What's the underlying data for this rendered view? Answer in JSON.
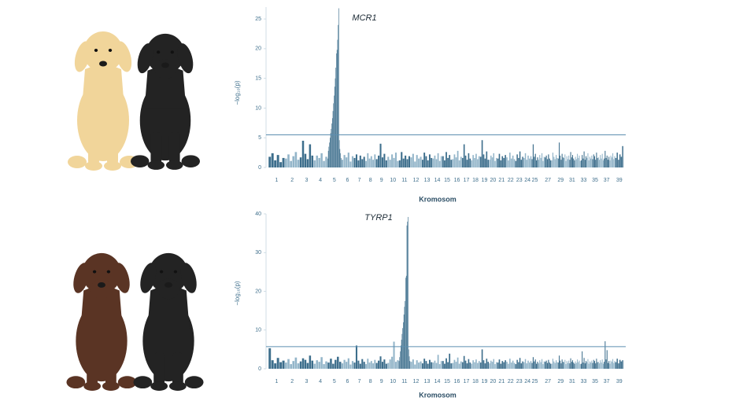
{
  "chart_data": [
    {
      "type": "manhattan",
      "annotation": "MCR1",
      "xlabel": "Kromosom",
      "ylabel": "−log₁₀(p)",
      "categories": [
        "1",
        "2",
        "3",
        "4",
        "5",
        "6",
        "7",
        "8",
        "9",
        "10",
        "11",
        "12",
        "13",
        "14",
        "15",
        "16",
        "17",
        "18",
        "19",
        "20",
        "21",
        "22",
        "23",
        "24",
        "25",
        null,
        "27",
        null,
        "29",
        null,
        "31",
        null,
        "33",
        null,
        "35",
        null,
        "37",
        null,
        "39"
      ],
      "colors": [
        "#3d6e8c",
        "#93b5c9"
      ],
      "threshold": 5.5,
      "ylim": [
        0,
        27
      ],
      "yticks": [
        0,
        5,
        10,
        15,
        20,
        25
      ],
      "values": [
        [
          1.8,
          2.4,
          1.2,
          2.1,
          0.9,
          1.6
        ],
        [
          1.5,
          2.2,
          1.1,
          1.9,
          2.6,
          1.3
        ],
        [
          1.7,
          4.5,
          2.3,
          1.4,
          3.9,
          2.0
        ],
        [
          1.2,
          2.0,
          1.6,
          2.4,
          1.1,
          1.8
        ],
        [
          1.5,
          2.8,
          3.5,
          4.2,
          5.0,
          5.8,
          6.5,
          7.4,
          8.3,
          9.5,
          10.8,
          12.1,
          13.6,
          15.0,
          16.8,
          19.2,
          19.8,
          21.5,
          24.0,
          26.8,
          4.6,
          3.1,
          2.4,
          1.6
        ],
        [
          1.3,
          2.1,
          1.7,
          2.5,
          1.0,
          1.9
        ],
        [
          1.6,
          2.2,
          1.2,
          2.0,
          1.4,
          1.8
        ],
        [
          1.1,
          2.4,
          1.5,
          1.9,
          1.3,
          2.2
        ],
        [
          1.4,
          2.0,
          4.0,
          1.7,
          2.3,
          1.2
        ],
        [
          1.8,
          1.3,
          2.2,
          1.6,
          2.5,
          1.1
        ],
        [
          1.2,
          2.6,
          1.5,
          2.0,
          1.4,
          1.9
        ],
        [
          1.7,
          2.3,
          1.0,
          2.1,
          1.5,
          1.8
        ],
        [
          1.3,
          2.5,
          1.9,
          1.2,
          2.2,
          1.6
        ],
        [
          1.5,
          2.0,
          1.4,
          2.4,
          1.1,
          1.9
        ],
        [
          1.9,
          1.2,
          2.6,
          1.6,
          2.1,
          1.3
        ],
        [
          1.4,
          2.2,
          1.7,
          2.8,
          1.2,
          1.8
        ],
        [
          1.6,
          3.9,
          2.0,
          1.3,
          2.4,
          1.5
        ],
        [
          1.2,
          2.1,
          1.6,
          2.3,
          1.4,
          1.9
        ],
        [
          1.8,
          4.6,
          2.2,
          1.5,
          2.7,
          1.3
        ],
        [
          1.3,
          2.0,
          1.7,
          2.4,
          1.1,
          1.6
        ],
        [
          1.5,
          2.3,
          1.2,
          1.9,
          1.6,
          2.1
        ],
        [
          1.7,
          1.2,
          2.5,
          1.5,
          2.0,
          1.4
        ],
        [
          1.1,
          2.2,
          1.6,
          2.7,
          1.3,
          1.8
        ],
        [
          1.6,
          2.4,
          1.3,
          2.0,
          1.5,
          1.9
        ],
        [
          1.4,
          3.9,
          1.8,
          2.3,
          1.2,
          1.7
        ],
        [
          1.3,
          2.1,
          1.6,
          2.4,
          1.1,
          1.8
        ],
        [
          1.7,
          2.0,
          1.4,
          2.2,
          1.5,
          1.2
        ],
        [
          1.2,
          2.5,
          1.8,
          1.4,
          2.1,
          1.6
        ],
        [
          1.5,
          4.2,
          2.0,
          1.3,
          2.3,
          1.7
        ],
        [
          1.6,
          2.2,
          1.1,
          1.9,
          1.4,
          2.0
        ],
        [
          1.3,
          2.6,
          1.7,
          2.1,
          1.5,
          1.2
        ],
        [
          1.8,
          1.4,
          2.3,
          1.6,
          2.0,
          1.1
        ],
        [
          1.2,
          2.1,
          1.5,
          2.7,
          1.3,
          1.9
        ],
        [
          1.6,
          2.4,
          1.2,
          1.8,
          1.5,
          2.0
        ],
        [
          1.4,
          2.2,
          1.9,
          1.3,
          2.5,
          1.6
        ],
        [
          1.7,
          1.3,
          2.1,
          1.5,
          2.3,
          1.2
        ],
        [
          1.5,
          2.8,
          1.6,
          2.0,
          1.3,
          1.8
        ],
        [
          1.2,
          2.0,
          1.7,
          2.4,
          1.4,
          1.9
        ],
        [
          1.6,
          2.5,
          1.3,
          2.2,
          1.8,
          3.6
        ]
      ]
    },
    {
      "type": "manhattan",
      "annotation": "TYRP1",
      "xlabel": "Kromosom",
      "ylabel": "−log₁₀(p)",
      "categories": [
        "1",
        "2",
        "3",
        "4",
        "5",
        "6",
        "7",
        "8",
        "9",
        "10",
        "11",
        "12",
        "13",
        "14",
        "15",
        "16",
        "17",
        "18",
        "19",
        "20",
        "21",
        "22",
        "23",
        "24",
        "25",
        null,
        "27",
        null,
        "29",
        null,
        "31",
        null,
        "33",
        null,
        "35",
        null,
        "37",
        null,
        "39"
      ],
      "colors": [
        "#3d6e8c",
        "#93b5c9"
      ],
      "threshold": 5.7,
      "ylim": [
        0,
        40
      ],
      "yticks": [
        0,
        10,
        20,
        30,
        40
      ],
      "values": [
        [
          5.3,
          2.2,
          1.4,
          2.8,
          1.7,
          2.1
        ],
        [
          1.6,
          2.5,
          1.2,
          2.0,
          2.9,
          1.4
        ],
        [
          1.9,
          2.7,
          2.3,
          1.5,
          3.4,
          2.1
        ],
        [
          1.3,
          2.2,
          1.8,
          3.0,
          1.2,
          1.9
        ],
        [
          1.6,
          2.6,
          1.3,
          2.3,
          3.1,
          1.8
        ],
        [
          1.4,
          2.3,
          1.8,
          2.7,
          1.1,
          2.0
        ],
        [
          1.6,
          6.0,
          2.1,
          1.3,
          2.5,
          1.8
        ],
        [
          1.2,
          2.6,
          1.6,
          2.0,
          1.4,
          2.3
        ],
        [
          1.5,
          2.1,
          3.2,
          1.8,
          2.4,
          1.3
        ],
        [
          1.5,
          2.4,
          3.1,
          7.0,
          1.8,
          2.2
        ],
        [
          2.0,
          3.0,
          4.5,
          6.0,
          7.5,
          9.0,
          10.5,
          12.0,
          14.0,
          16.0,
          17.5,
          23.5,
          24.0,
          37.0,
          38.0,
          39.2,
          5.0,
          3.2,
          2.0
        ],
        [
          1.8,
          2.4,
          1.1,
          2.2,
          1.6,
          1.9
        ],
        [
          1.4,
          2.6,
          2.0,
          1.3,
          2.3,
          1.7
        ],
        [
          1.6,
          2.1,
          1.5,
          3.6,
          1.2,
          2.0
        ],
        [
          2.0,
          1.3,
          2.7,
          1.7,
          3.9,
          1.4
        ],
        [
          1.5,
          2.3,
          1.8,
          2.9,
          1.3,
          1.9
        ],
        [
          1.7,
          3.3,
          2.1,
          1.4,
          2.5,
          1.6
        ],
        [
          1.3,
          2.2,
          1.7,
          2.4,
          1.5,
          2.0
        ],
        [
          1.6,
          5.0,
          2.2,
          1.4,
          2.6,
          1.8
        ],
        [
          1.4,
          2.1,
          1.8,
          2.5,
          1.2,
          1.7
        ],
        [
          1.6,
          2.4,
          1.3,
          2.0,
          1.7,
          2.2
        ],
        [
          1.8,
          1.3,
          2.6,
          1.6,
          2.1,
          1.5
        ],
        [
          1.2,
          2.3,
          1.7,
          2.8,
          1.4,
          1.9
        ],
        [
          1.7,
          2.5,
          1.4,
          2.1,
          1.6,
          2.0
        ],
        [
          1.5,
          3.0,
          1.9,
          2.4,
          1.3,
          1.8
        ],
        [
          1.4,
          2.2,
          1.7,
          2.5,
          1.2,
          1.9
        ],
        [
          1.8,
          2.1,
          1.5,
          2.3,
          1.6,
          1.3
        ],
        [
          1.3,
          2.6,
          1.9,
          1.5,
          2.2,
          1.7
        ],
        [
          1.6,
          3.4,
          2.1,
          1.4,
          2.4,
          1.8
        ],
        [
          1.7,
          2.3,
          1.2,
          2.0,
          1.5,
          2.1
        ],
        [
          1.4,
          2.7,
          1.8,
          2.2,
          1.6,
          1.3
        ],
        [
          1.9,
          1.5,
          2.4,
          1.7,
          2.1,
          1.2
        ],
        [
          1.3,
          4.5,
          1.6,
          2.8,
          1.4,
          2.0
        ],
        [
          1.7,
          2.5,
          1.3,
          1.9,
          1.6,
          2.1
        ],
        [
          1.5,
          2.3,
          2.0,
          1.4,
          2.6,
          1.7
        ],
        [
          1.8,
          1.4,
          2.2,
          1.6,
          2.4,
          1.3
        ],
        [
          1.8,
          7.1,
          2.4,
          4.8,
          1.5,
          2.0
        ],
        [
          1.3,
          2.1,
          1.8,
          2.5,
          1.5,
          2.0
        ],
        [
          1.7,
          2.6,
          1.4,
          2.3,
          1.9,
          2.2
        ]
      ]
    }
  ]
}
